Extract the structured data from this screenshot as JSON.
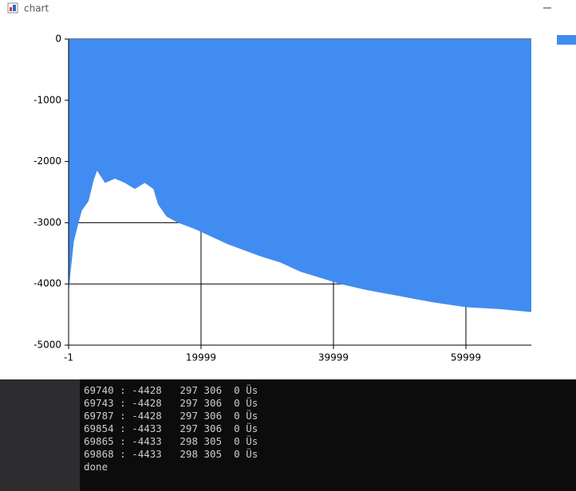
{
  "window": {
    "title": "chart"
  },
  "chart_data": {
    "type": "area",
    "color": "#418cf0",
    "x": [
      -1,
      300,
      800,
      1500,
      2000,
      3000,
      3800,
      4300,
      5500,
      7000,
      8500,
      10000,
      11500,
      12800,
      13500,
      14800,
      16500,
      19000,
      21000,
      24000,
      26500,
      29000,
      32000,
      35000,
      38000,
      41000,
      45000,
      50000,
      55000,
      60000,
      65000,
      69880
    ],
    "values": [
      -4150,
      -3800,
      -3300,
      -3000,
      -2800,
      -2650,
      -2300,
      -2150,
      -2350,
      -2280,
      -2350,
      -2450,
      -2350,
      -2450,
      -2700,
      -2900,
      -3000,
      -3100,
      -3200,
      -3350,
      -3450,
      -3550,
      -3650,
      -3800,
      -3900,
      -4000,
      -4100,
      -4200,
      -4300,
      -4380,
      -4410,
      -4460
    ],
    "xlim": [
      -1,
      69880
    ],
    "xticks": [
      -1,
      19999,
      39999,
      59999
    ],
    "ylim": [
      -5000,
      0
    ],
    "yticks": [
      0,
      -1000,
      -2000,
      -3000,
      -4000,
      -5000
    ],
    "grid": true
  },
  "console": {
    "lines": [
      "69740 : -4428   297 306  0 Üs",
      "69743 : -4428   297 306  0 Üs",
      "69787 : -4428   297 306  0 Üs",
      "69854 : -4433   297 306  0 Üs",
      "69865 : -4433   298 305  0 Üs",
      "69868 : -4433   298 305  0 Üs",
      "done"
    ]
  }
}
